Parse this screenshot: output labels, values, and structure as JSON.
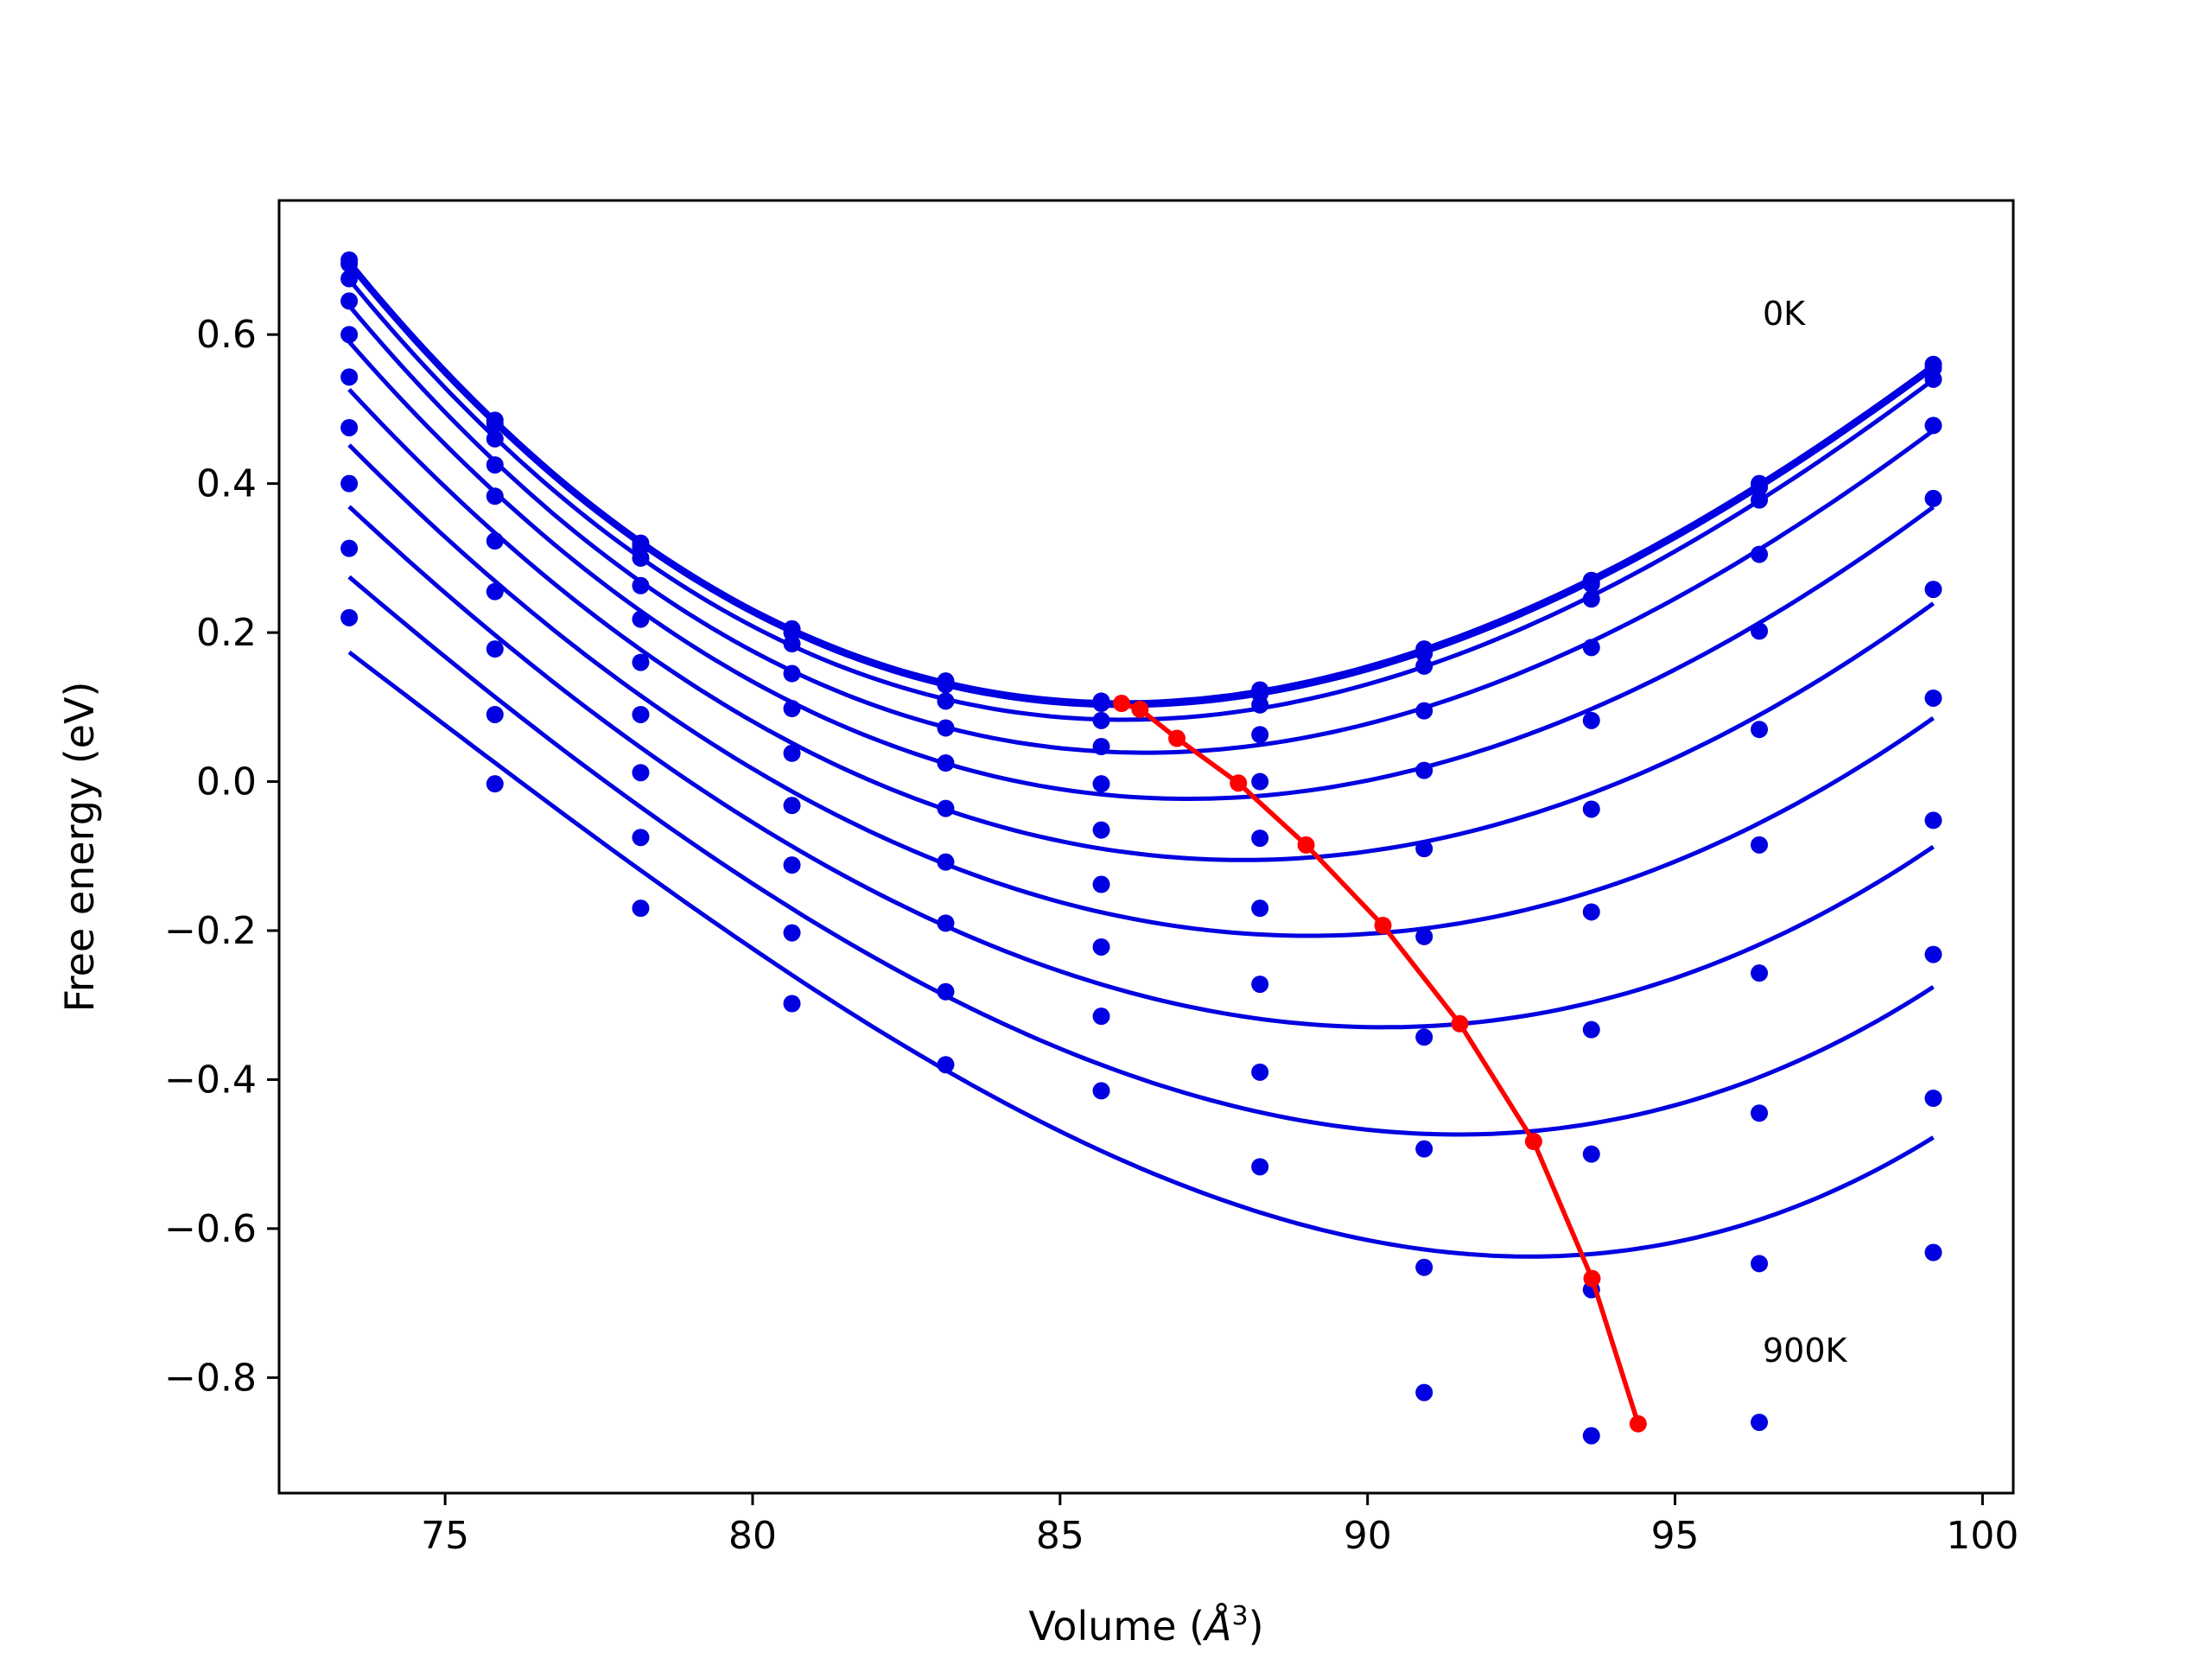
{
  "chart_data": {
    "type": "scatter",
    "title": "",
    "xlabel_prefix": "Volume (",
    "xlabel_unit": "Å",
    "xlabel_exp": "3",
    "xlabel_suffix": ")",
    "ylabel": "Free energy (eV)",
    "xlim": [
      72.3,
      100.5
    ],
    "ylim": [
      -0.955,
      0.78
    ],
    "xticks": [
      75,
      80,
      85,
      90,
      95,
      100
    ],
    "yticks": [
      -0.8,
      -0.6,
      -0.4,
      -0.2,
      0.0,
      0.2,
      0.4,
      0.6
    ],
    "grid": false,
    "legend": "none",
    "colors": {
      "data": "#0000e0",
      "minima": "#ff0000"
    },
    "x": [
      73.44,
      75.81,
      78.18,
      80.64,
      83.14,
      85.67,
      88.25,
      90.92,
      93.64,
      96.37,
      99.2
    ],
    "series": [
      {
        "label": "0K",
        "points": [
          0.7,
          0.485,
          0.32,
          0.205,
          0.135,
          0.108,
          0.123,
          0.178,
          0.27,
          0.4,
          0.56
        ],
        "fit_min_volume": 86.0,
        "fit_min_energy": 0.105
      },
      {
        "label": "",
        "points": [
          0.695,
          0.48,
          0.315,
          0.2,
          0.13,
          0.105,
          0.118,
          0.172,
          0.265,
          0.395,
          0.555
        ],
        "fit_min_volume": 86.3,
        "fit_min_energy": 0.097
      },
      {
        "label": "",
        "points": [
          0.675,
          0.46,
          0.3,
          0.185,
          0.108,
          0.082,
          0.103,
          0.155,
          0.245,
          0.378,
          0.54
        ],
        "fit_min_volume": 86.9,
        "fit_min_energy": 0.058
      },
      {
        "label": "",
        "points": [
          0.645,
          0.425,
          0.263,
          0.145,
          0.072,
          0.047,
          0.063,
          0.095,
          0.18,
          0.305,
          0.478
        ],
        "fit_min_volume": 87.9,
        "fit_min_energy": -0.002
      },
      {
        "label": "",
        "points": [
          0.6,
          0.383,
          0.218,
          0.098,
          0.025,
          -0.003,
          0.0,
          0.015,
          0.082,
          0.202,
          0.38
        ],
        "fit_min_volume": 89.0,
        "fit_min_energy": -0.085
      },
      {
        "label": "",
        "points": [
          0.543,
          0.323,
          0.16,
          0.038,
          -0.036,
          -0.065,
          -0.076,
          -0.09,
          -0.037,
          0.07,
          0.258
        ],
        "fit_min_volume": 90.25,
        "fit_min_energy": -0.193
      },
      {
        "label": "",
        "points": [
          0.475,
          0.255,
          0.09,
          -0.032,
          -0.108,
          -0.138,
          -0.17,
          -0.208,
          -0.175,
          -0.085,
          0.112
        ],
        "fit_min_volume": 91.5,
        "fit_min_energy": -0.325
      },
      {
        "label": "",
        "points": [
          0.4,
          0.178,
          0.012,
          -0.112,
          -0.19,
          -0.222,
          -0.272,
          -0.343,
          -0.333,
          -0.257,
          -0.052
        ],
        "fit_min_volume": 92.7,
        "fit_min_energy": -0.483
      },
      {
        "label": "",
        "points": [
          0.313,
          0.09,
          -0.075,
          -0.203,
          -0.282,
          -0.315,
          -0.39,
          -0.493,
          -0.5,
          -0.445,
          -0.232
        ],
        "fit_min_volume": 93.65,
        "fit_min_energy": -0.667
      },
      {
        "label": "900K",
        "points": [
          0.22,
          -0.003,
          -0.17,
          -0.298,
          -0.38,
          -0.415,
          -0.517,
          -0.652,
          -0.682,
          -0.647,
          -0.425
        ],
        "fit_min_volume": 94.4,
        "fit_min_energy": -0.862
      }
    ],
    "extra_points": [
      {
        "x": 90.92,
        "y": -0.82
      },
      {
        "x": 93.64,
        "y": -0.878
      },
      {
        "x": 96.37,
        "y": -0.86
      },
      {
        "x": 99.2,
        "y": -0.632
      }
    ]
  }
}
